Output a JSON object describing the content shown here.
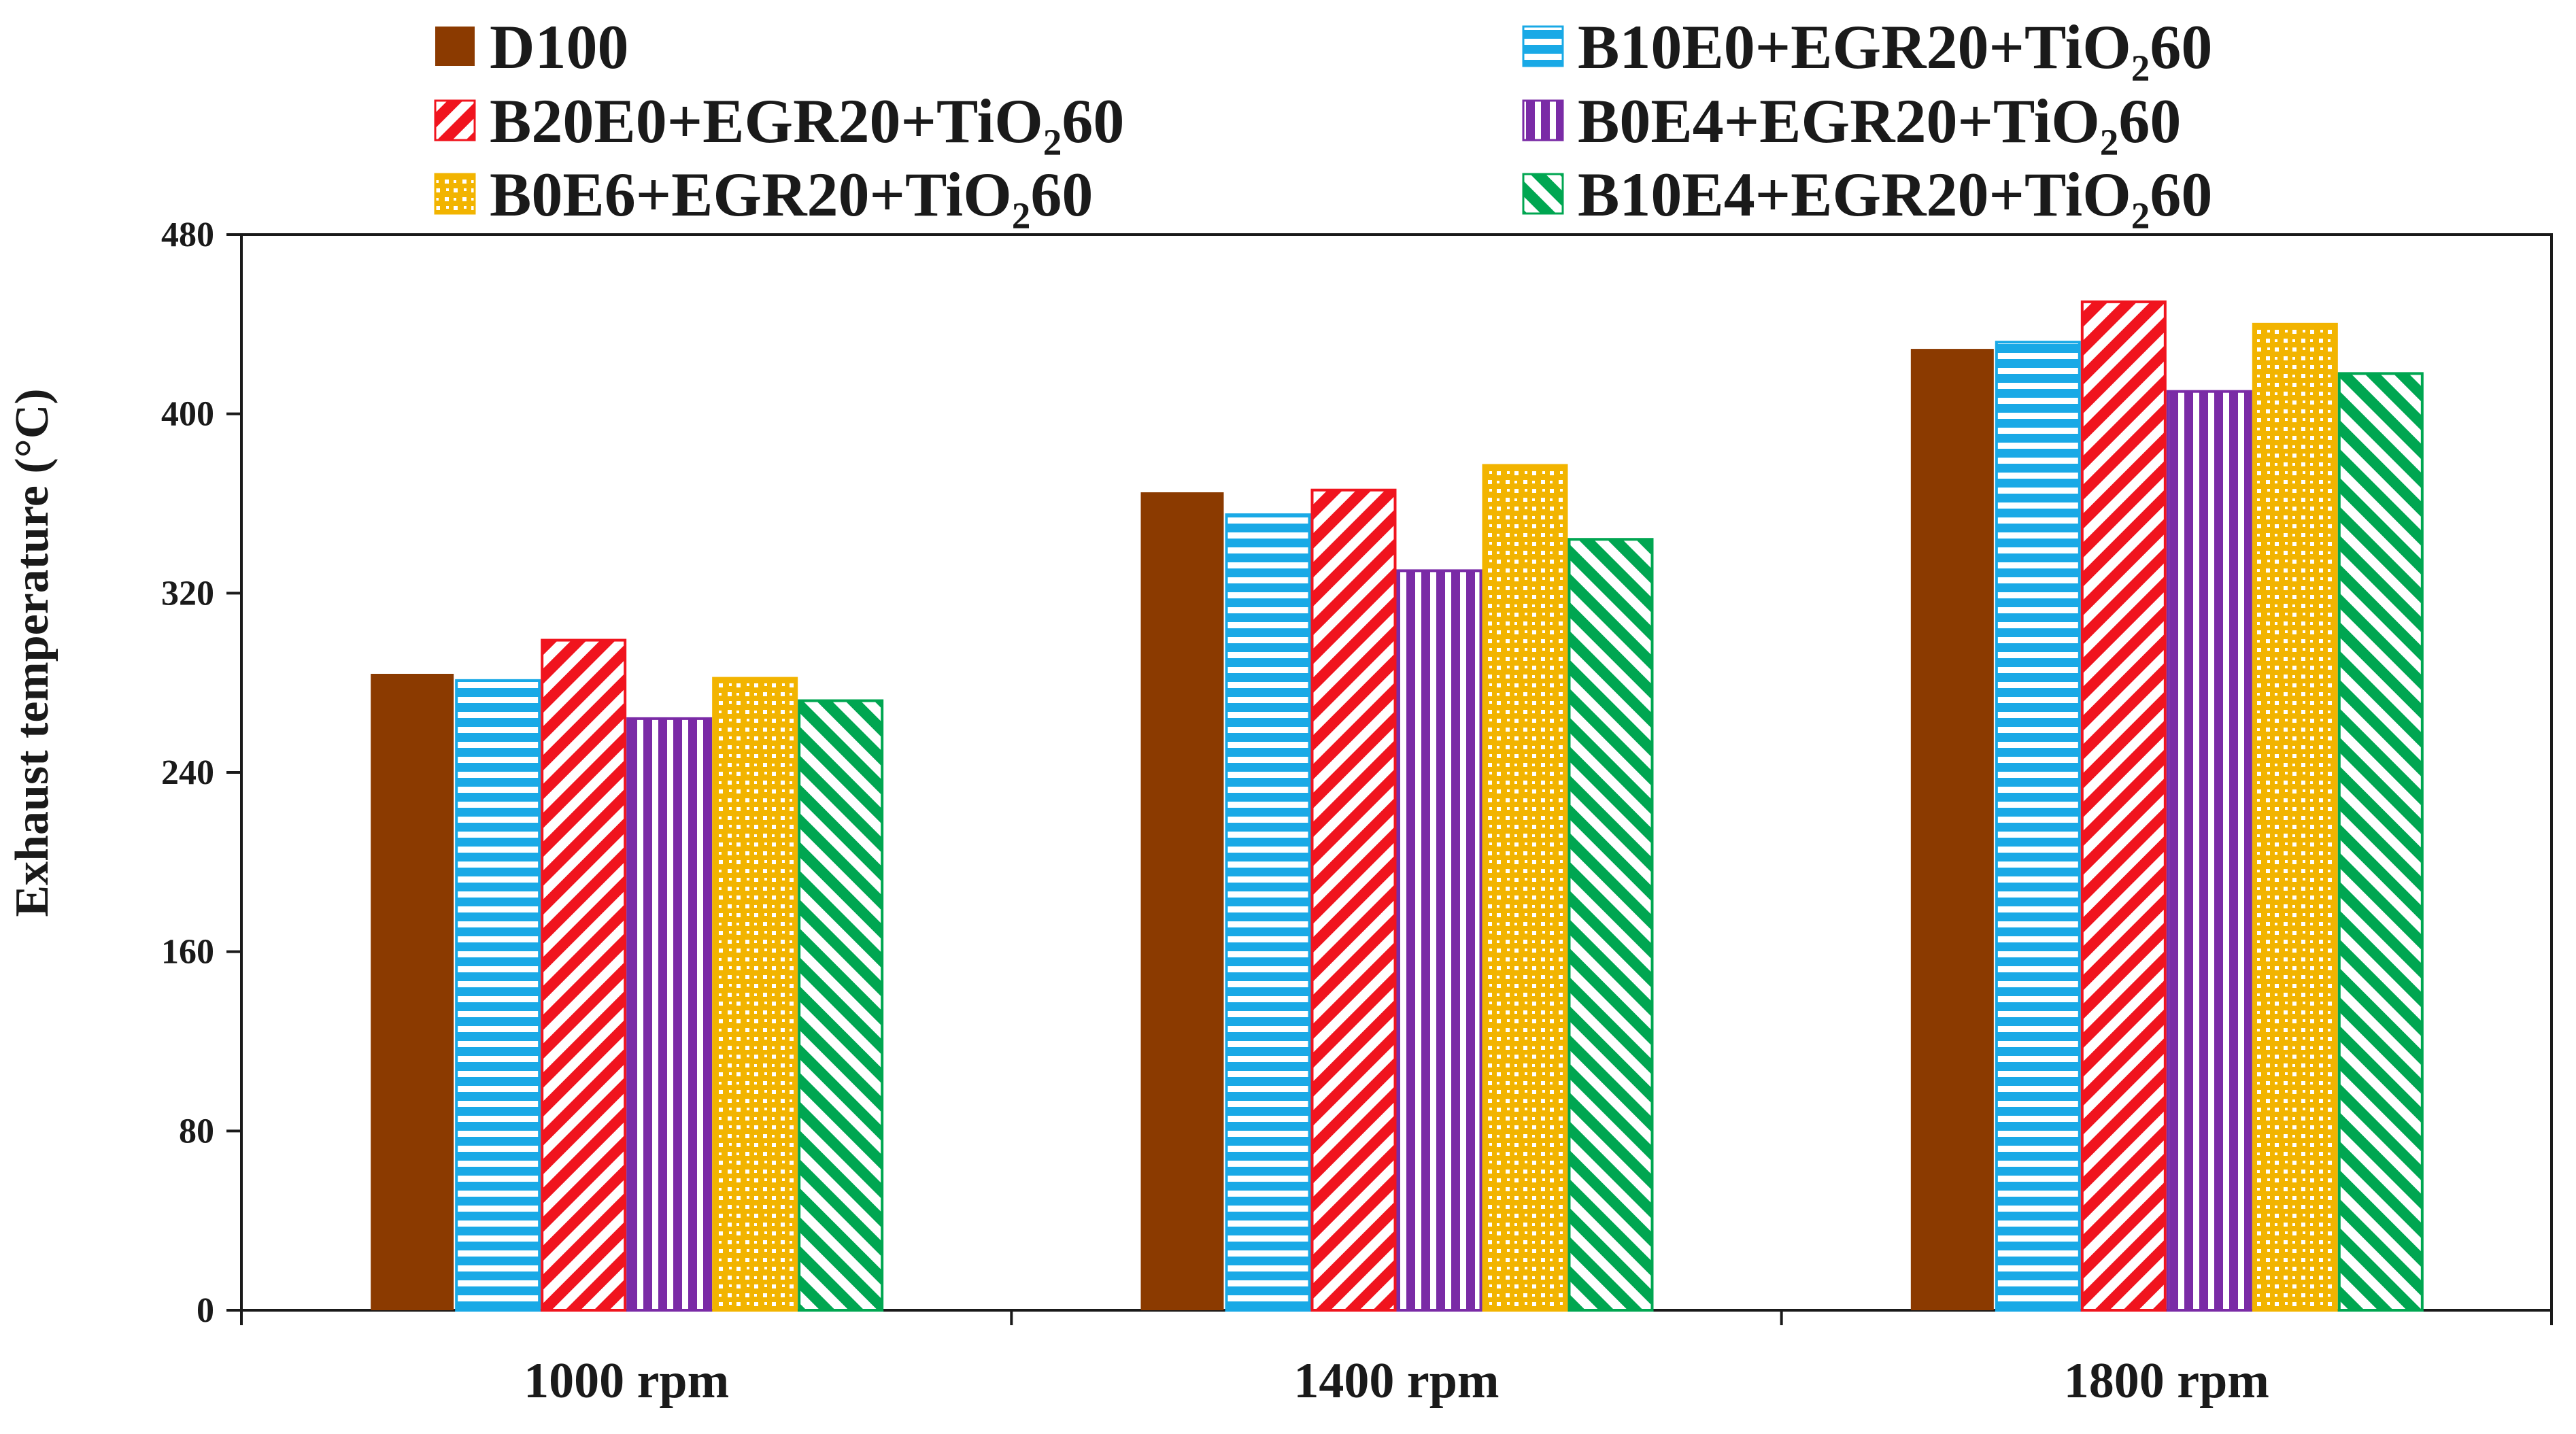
{
  "chart_data": {
    "type": "bar",
    "title": "",
    "xlabel": "",
    "ylabel": "Exhaust temperature (°C)",
    "ylim": [
      0,
      480
    ],
    "yticks": [
      0,
      80,
      160,
      240,
      320,
      400,
      480
    ],
    "ytick_labels": [
      "0",
      "80",
      "160",
      "240",
      "320",
      "400",
      "480"
    ],
    "grid": false,
    "legend_position": "top",
    "categories": [
      "1000 rpm",
      "1400 rpm",
      "1800 rpm"
    ],
    "series": [
      {
        "name": "D100",
        "color": "#8B3A00",
        "pattern": "solid",
        "values": [
          284,
          365,
          429
        ]
      },
      {
        "name": "B10E0+EGR20+TiO₂60",
        "color": "#19A9E6",
        "pattern": "horizontal",
        "values": [
          281,
          355,
          432
        ]
      },
      {
        "name": "B20E0+EGR20+TiO₂60",
        "color": "#F0141E",
        "pattern": "diagonal-up",
        "values": [
          299,
          366,
          450
        ]
      },
      {
        "name": "B0E4+EGR20+TiO₂60",
        "color": "#7A2BA6",
        "pattern": "vertical",
        "values": [
          264,
          330,
          410
        ]
      },
      {
        "name": "B0E6+EGR20+TiO₂60",
        "color": "#F2B400",
        "pattern": "dots",
        "values": [
          282,
          377,
          440
        ]
      },
      {
        "name": "B10E4+EGR20+TiO₂60",
        "color": "#00A651",
        "pattern": "diagonal-down",
        "values": [
          272,
          344,
          418
        ]
      }
    ]
  }
}
